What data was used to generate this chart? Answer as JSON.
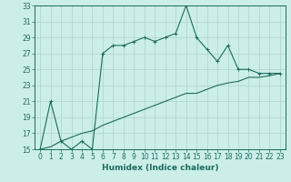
{
  "xlabel": "Humidex (Indice chaleur)",
  "bg_color": "#cceee8",
  "line_color": "#1a6b5e",
  "grid_color": "#b0d8d0",
  "xlim": [
    -0.5,
    23.5
  ],
  "ylim": [
    15,
    33
  ],
  "xticks": [
    0,
    1,
    2,
    3,
    4,
    5,
    6,
    7,
    8,
    9,
    10,
    11,
    12,
    13,
    14,
    15,
    16,
    17,
    18,
    19,
    20,
    21,
    22,
    23
  ],
  "yticks": [
    15,
    17,
    19,
    21,
    23,
    25,
    27,
    29,
    31,
    33
  ],
  "curve1_x": [
    0,
    1,
    2,
    3,
    4,
    5,
    6,
    7,
    8,
    9,
    10,
    11,
    12,
    13,
    14,
    15,
    16,
    17,
    18,
    19,
    20,
    21,
    22,
    23
  ],
  "curve1_y": [
    15,
    21,
    16,
    15,
    16,
    15,
    27,
    28,
    28,
    28.5,
    29,
    28.5,
    29,
    29.5,
    33,
    29,
    27.5,
    26,
    28,
    25,
    25,
    24.5,
    24.5,
    24.5
  ],
  "curve2_x": [
    0,
    1,
    2,
    3,
    4,
    5,
    6,
    7,
    8,
    9,
    10,
    11,
    12,
    13,
    14,
    15,
    16,
    17,
    18,
    19,
    20,
    21,
    22,
    23
  ],
  "curve2_y": [
    15,
    15.3,
    16,
    16.5,
    17,
    17.3,
    18.0,
    18.5,
    19.0,
    19.5,
    20.0,
    20.5,
    21.0,
    21.5,
    22.0,
    22.0,
    22.5,
    23.0,
    23.3,
    23.5,
    24.0,
    24.0,
    24.2,
    24.5
  ],
  "tick_fontsize": 5.5,
  "xlabel_fontsize": 6.5
}
